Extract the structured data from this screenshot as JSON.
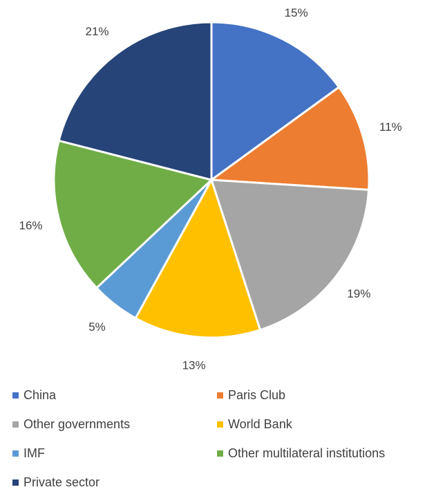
{
  "chart_data": {
    "type": "pie",
    "title": "",
    "categories": [
      "China",
      "Paris Club",
      "Other governments",
      "World Bank",
      "IMF",
      "Other multilateral institutions",
      "Private sector"
    ],
    "values": [
      15,
      11,
      19,
      13,
      5,
      16,
      21
    ],
    "labels": [
      "15%",
      "11%",
      "19%",
      "13%",
      "5%",
      "16%",
      "21%"
    ],
    "colors": [
      "#4472C4",
      "#ED7D31",
      "#A5A5A5",
      "#FFC000",
      "#5B9BD5",
      "#70AD47",
      "#264478"
    ],
    "start": "12 o'clock",
    "direction": "clockwise",
    "legend_position": "bottom"
  }
}
